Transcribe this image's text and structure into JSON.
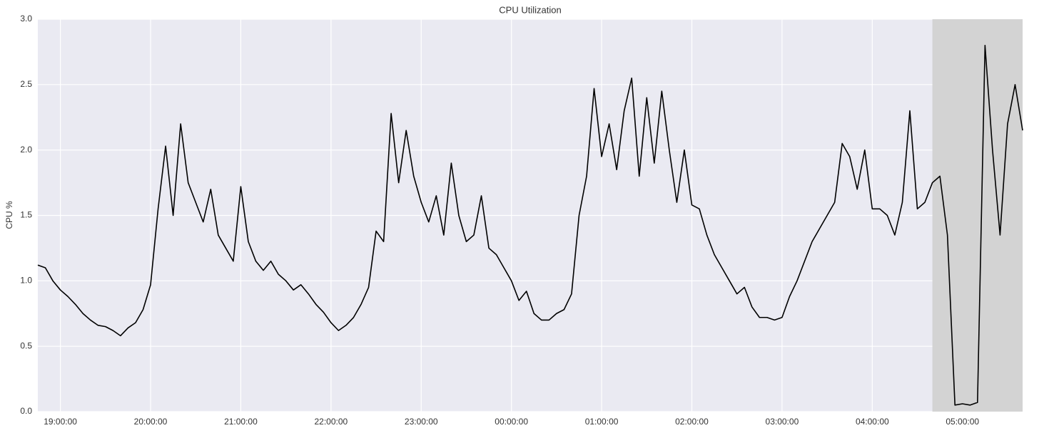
{
  "chart_data": {
    "type": "line",
    "title": "CPU Utilization",
    "y_label": "CPU %",
    "x": [
      "18:45:00",
      "18:50:00",
      "18:55:00",
      "19:00:00",
      "19:05:00",
      "19:10:00",
      "19:15:00",
      "19:20:00",
      "19:25:00",
      "19:30:00",
      "19:35:00",
      "19:40:00",
      "19:45:00",
      "19:50:00",
      "19:55:00",
      "20:00:00",
      "20:05:00",
      "20:10:00",
      "20:15:00",
      "20:20:00",
      "20:25:00",
      "20:30:00",
      "20:35:00",
      "20:40:00",
      "20:45:00",
      "20:50:00",
      "20:55:00",
      "21:00:00",
      "21:05:00",
      "21:10:00",
      "21:15:00",
      "21:20:00",
      "21:25:00",
      "21:30:00",
      "21:35:00",
      "21:40:00",
      "21:45:00",
      "21:50:00",
      "21:55:00",
      "22:00:00",
      "22:05:00",
      "22:10:00",
      "22:15:00",
      "22:20:00",
      "22:25:00",
      "22:30:00",
      "22:35:00",
      "22:40:00",
      "22:45:00",
      "22:50:00",
      "22:55:00",
      "23:00:00",
      "23:05:00",
      "23:10:00",
      "23:15:00",
      "23:20:00",
      "23:25:00",
      "23:30:00",
      "23:35:00",
      "23:40:00",
      "23:45:00",
      "23:50:00",
      "23:55:00",
      "00:00:00",
      "00:05:00",
      "00:10:00",
      "00:15:00",
      "00:20:00",
      "00:25:00",
      "00:30:00",
      "00:35:00",
      "00:40:00",
      "00:45:00",
      "00:50:00",
      "00:55:00",
      "01:00:00",
      "01:05:00",
      "01:10:00",
      "01:15:00",
      "01:20:00",
      "01:25:00",
      "01:30:00",
      "01:35:00",
      "01:40:00",
      "01:45:00",
      "01:50:00",
      "01:55:00",
      "02:00:00",
      "02:05:00",
      "02:10:00",
      "02:15:00",
      "02:20:00",
      "02:25:00",
      "02:30:00",
      "02:35:00",
      "02:40:00",
      "02:45:00",
      "02:50:00",
      "02:55:00",
      "03:00:00",
      "03:05:00",
      "03:10:00",
      "03:15:00",
      "03:20:00",
      "03:25:00",
      "03:30:00",
      "03:35:00",
      "03:40:00",
      "03:45:00",
      "03:50:00",
      "03:55:00",
      "04:00:00",
      "04:05:00",
      "04:10:00",
      "04:15:00",
      "04:20:00",
      "04:25:00",
      "04:30:00",
      "04:35:00",
      "04:40:00",
      "04:45:00",
      "04:50:00",
      "04:55:00",
      "05:00:00",
      "05:05:00",
      "05:10:00",
      "05:15:00",
      "05:20:00",
      "05:25:00",
      "05:30:00",
      "05:35:00",
      "05:40:00"
    ],
    "values": [
      1.12,
      1.1,
      1.0,
      0.93,
      0.88,
      0.82,
      0.75,
      0.7,
      0.66,
      0.65,
      0.62,
      0.58,
      0.64,
      0.68,
      0.78,
      0.97,
      1.55,
      2.03,
      1.5,
      2.2,
      1.75,
      1.6,
      1.45,
      1.7,
      1.35,
      1.25,
      1.15,
      1.72,
      1.3,
      1.15,
      1.08,
      1.15,
      1.05,
      1.0,
      0.93,
      0.97,
      0.9,
      0.82,
      0.76,
      0.68,
      0.62,
      0.66,
      0.72,
      0.82,
      0.95,
      1.38,
      1.3,
      2.28,
      1.75,
      2.15,
      1.8,
      1.6,
      1.45,
      1.65,
      1.35,
      1.9,
      1.5,
      1.3,
      1.35,
      1.65,
      1.25,
      1.2,
      1.1,
      1.0,
      0.85,
      0.92,
      0.75,
      0.7,
      0.7,
      0.75,
      0.78,
      0.9,
      1.5,
      1.8,
      2.47,
      1.95,
      2.2,
      1.85,
      2.3,
      2.55,
      1.8,
      2.4,
      1.9,
      2.45,
      2.0,
      1.6,
      2.0,
      1.58,
      1.55,
      1.35,
      1.2,
      1.1,
      1.0,
      0.9,
      0.95,
      0.8,
      0.72,
      0.72,
      0.7,
      0.72,
      0.88,
      1.0,
      1.15,
      1.3,
      1.4,
      1.5,
      1.6,
      2.05,
      1.95,
      1.7,
      2.0,
      1.55,
      1.55,
      1.5,
      1.35,
      1.6,
      2.3,
      1.55,
      1.6,
      1.75,
      1.8,
      1.35,
      0.05,
      0.06,
      0.05,
      0.07,
      2.8,
      2.0,
      1.35,
      2.2,
      2.5,
      2.15
    ],
    "color": "#000000",
    "xticks": [
      "19:00:00",
      "20:00:00",
      "21:00:00",
      "22:00:00",
      "23:00:00",
      "00:00:00",
      "01:00:00",
      "02:00:00",
      "03:00:00",
      "04:00:00",
      "05:00:00"
    ],
    "ylim": [
      0,
      3
    ],
    "yticks": [
      {
        "value": 0,
        "label": "0.0"
      },
      0.5,
      {
        "value": 1,
        "label": "1.0"
      },
      1.5,
      {
        "value": 2,
        "label": "2.0"
      },
      2.5,
      {
        "value": 3,
        "label": "3.0"
      }
    ],
    "grid": true,
    "shaded_range": [
      "04:40:00",
      "05:40:00"
    ],
    "shade_color": "#d3d3d3"
  }
}
